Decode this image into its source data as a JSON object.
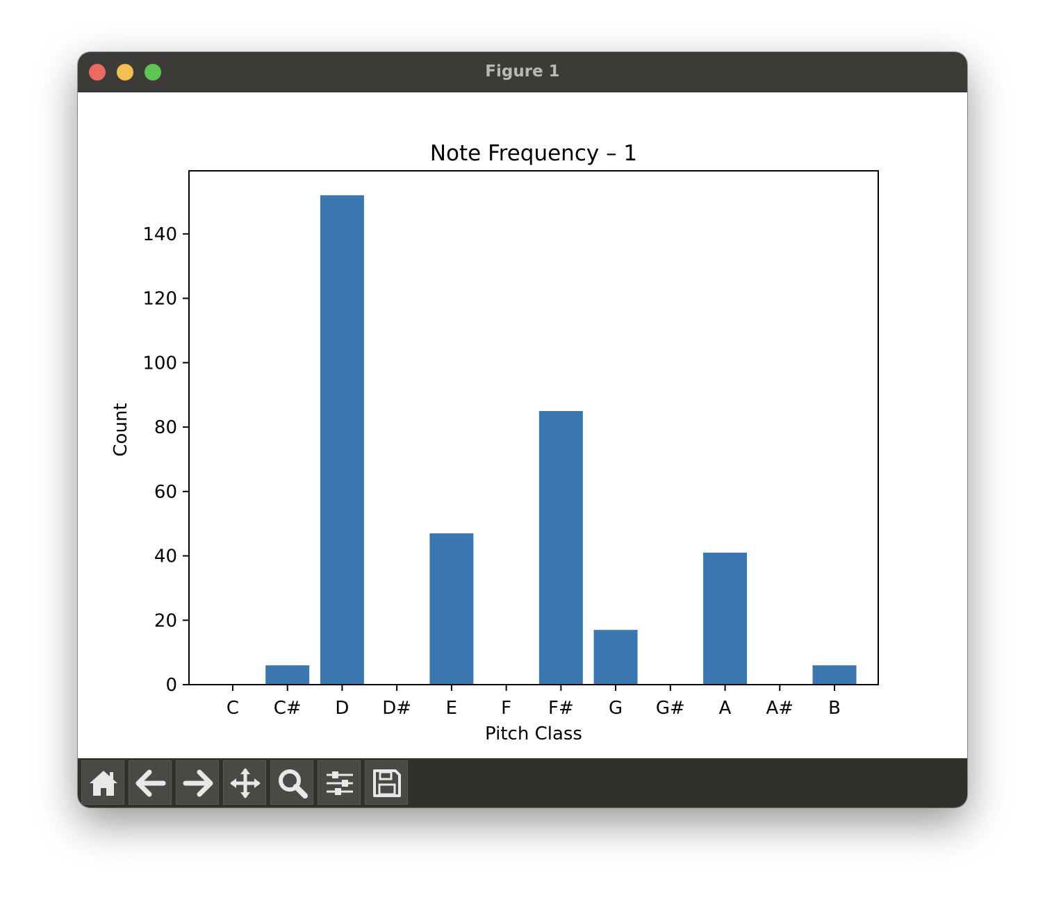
{
  "window": {
    "title": "Figure 1"
  },
  "toolbar": {
    "buttons": [
      {
        "name": "home-button",
        "icon": "home-icon"
      },
      {
        "name": "back-button",
        "icon": "arrow-left-icon"
      },
      {
        "name": "forward-button",
        "icon": "arrow-right-icon"
      },
      {
        "name": "pan-button",
        "icon": "move-icon"
      },
      {
        "name": "zoom-button",
        "icon": "search-icon"
      },
      {
        "name": "configure-subplots-button",
        "icon": "sliders-icon"
      },
      {
        "name": "save-button",
        "icon": "floppy-disk-icon"
      }
    ]
  },
  "chart_data": {
    "type": "bar",
    "title": "Note Frequency – 1",
    "xlabel": "Pitch Class",
    "ylabel": "Count",
    "categories": [
      "C",
      "C#",
      "D",
      "D#",
      "E",
      "F",
      "F#",
      "G",
      "G#",
      "A",
      "A#",
      "B"
    ],
    "values": [
      0,
      6,
      152,
      0,
      47,
      0,
      85,
      17,
      0,
      41,
      0,
      6
    ],
    "ylim": [
      0,
      159.6
    ],
    "yticks": [
      0,
      20,
      40,
      60,
      80,
      100,
      120,
      140
    ],
    "bar_color": "#3a76af",
    "grid": false,
    "legend": "none"
  }
}
